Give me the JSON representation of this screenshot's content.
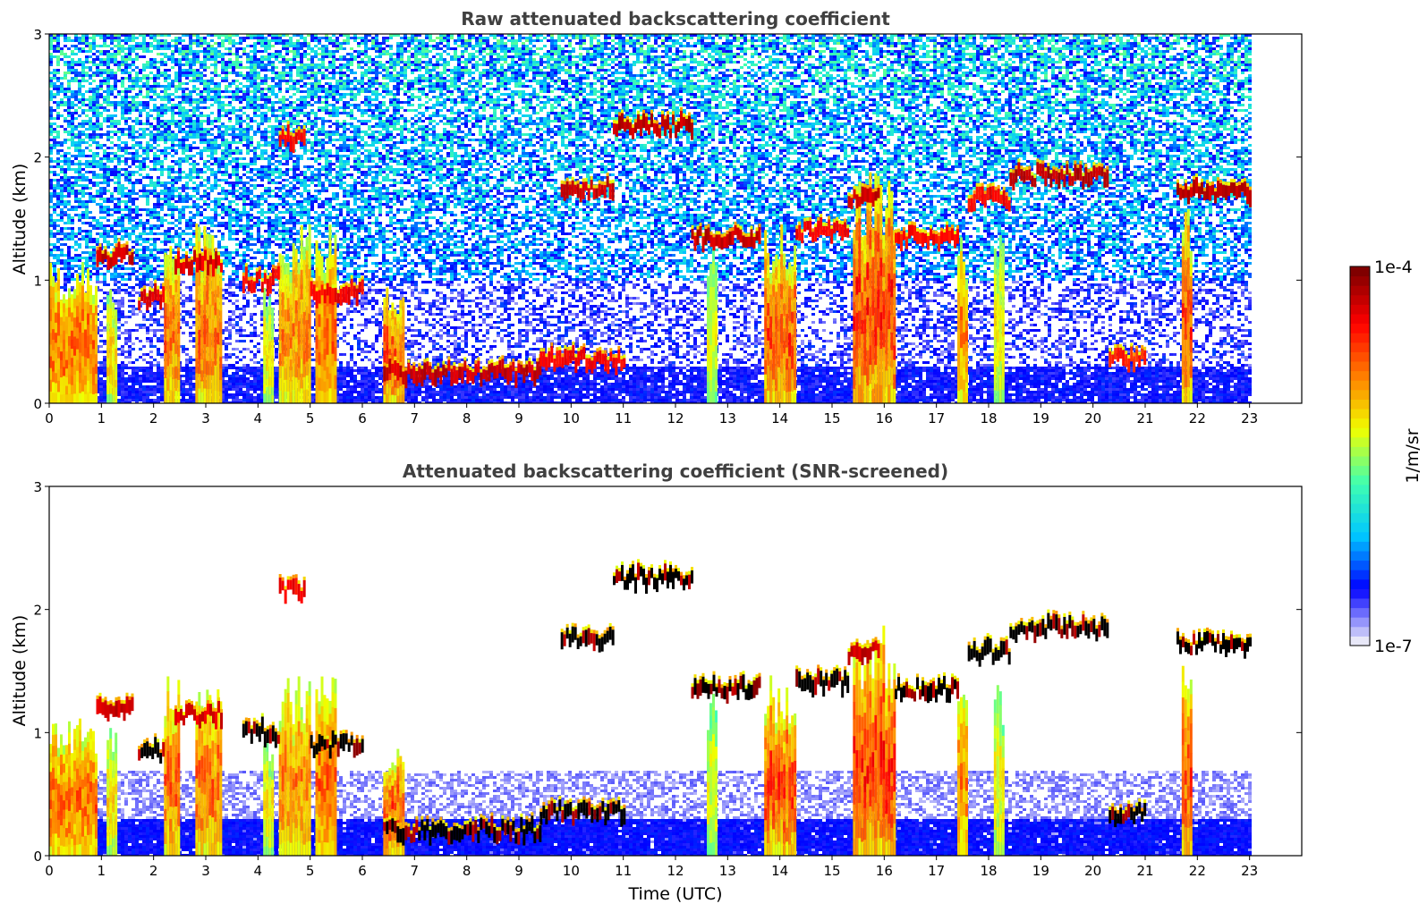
{
  "chart_data": [
    {
      "type": "heatmap",
      "title": "Raw attenuated backscattering coefficient",
      "xlabel": "",
      "ylabel": "Altitude (km)",
      "xlim": [
        0,
        24
      ],
      "ylim": [
        0,
        3
      ],
      "xticks": [
        "0",
        "1",
        "2",
        "3",
        "4",
        "5",
        "6",
        "7",
        "8",
        "9",
        "10",
        "11",
        "12",
        "13",
        "14",
        "15",
        "16",
        "17",
        "18",
        "19",
        "20",
        "21",
        "22",
        "23"
      ],
      "yticks": [
        "0",
        "1",
        "2",
        "3"
      ],
      "data_end_x": 23,
      "layers": [
        {
          "x0": 0.9,
          "x1": 1.6,
          "y": 1.2,
          "level": 0.95
        },
        {
          "x0": 1.7,
          "x1": 2.2,
          "y": 0.85,
          "level": 0.92
        },
        {
          "x0": 2.4,
          "x1": 3.3,
          "y": 1.15,
          "level": 0.93
        },
        {
          "x0": 3.7,
          "x1": 4.4,
          "y": 1.0,
          "level": 0.9
        },
        {
          "x0": 4.4,
          "x1": 4.9,
          "y": 2.15,
          "level": 0.9
        },
        {
          "x0": 5.0,
          "x1": 6.0,
          "y": 0.9,
          "level": 0.9
        },
        {
          "x0": 6.4,
          "x1": 9.4,
          "y": 0.25,
          "level": 0.95
        },
        {
          "x0": 9.4,
          "x1": 11.0,
          "y": 0.35,
          "level": 0.9
        },
        {
          "x0": 9.8,
          "x1": 10.8,
          "y": 1.75,
          "level": 0.95
        },
        {
          "x0": 10.8,
          "x1": 12.3,
          "y": 2.25,
          "level": 0.97
        },
        {
          "x0": 12.3,
          "x1": 13.6,
          "y": 1.35,
          "level": 0.96
        },
        {
          "x0": 14.3,
          "x1": 15.3,
          "y": 1.4,
          "level": 0.9
        },
        {
          "x0": 15.3,
          "x1": 15.9,
          "y": 1.65,
          "level": 0.95
        },
        {
          "x0": 16.2,
          "x1": 17.4,
          "y": 1.35,
          "level": 0.88
        },
        {
          "x0": 17.6,
          "x1": 18.4,
          "y": 1.65,
          "level": 0.9
        },
        {
          "x0": 18.4,
          "x1": 20.3,
          "y": 1.85,
          "level": 0.97
        },
        {
          "x0": 20.3,
          "x1": 21.0,
          "y": 0.35,
          "level": 0.85
        },
        {
          "x0": 21.6,
          "x1": 23.0,
          "y": 1.72,
          "level": 0.97
        }
      ],
      "columns": [
        {
          "x0": 0.0,
          "x1": 0.9,
          "top": 1.1,
          "level": 0.75
        },
        {
          "x0": 1.1,
          "x1": 1.3,
          "top": 1.0,
          "level": 0.55
        },
        {
          "x0": 2.2,
          "x1": 2.5,
          "top": 1.4,
          "level": 0.75
        },
        {
          "x0": 2.8,
          "x1": 3.3,
          "top": 1.4,
          "level": 0.75
        },
        {
          "x0": 4.1,
          "x1": 4.3,
          "top": 0.9,
          "level": 0.5
        },
        {
          "x0": 4.4,
          "x1": 5.0,
          "top": 1.4,
          "level": 0.7
        },
        {
          "x0": 5.1,
          "x1": 5.5,
          "top": 1.4,
          "level": 0.75
        },
        {
          "x0": 6.4,
          "x1": 6.8,
          "top": 0.9,
          "level": 0.8
        },
        {
          "x0": 12.6,
          "x1": 12.8,
          "top": 1.3,
          "level": 0.45
        },
        {
          "x0": 13.7,
          "x1": 14.3,
          "top": 1.4,
          "level": 0.8
        },
        {
          "x0": 15.4,
          "x1": 16.2,
          "top": 1.8,
          "level": 0.85
        },
        {
          "x0": 17.4,
          "x1": 17.6,
          "top": 1.3,
          "level": 0.7
        },
        {
          "x0": 18.1,
          "x1": 18.3,
          "top": 1.4,
          "level": 0.5
        },
        {
          "x0": 21.7,
          "x1": 21.9,
          "top": 1.6,
          "level": 0.8
        }
      ]
    },
    {
      "type": "heatmap",
      "title": "Attenuated backscattering coefficient (SNR-screened)",
      "xlabel": "Time (UTC)",
      "ylabel": "Altitude (km)",
      "xlim": [
        0,
        24
      ],
      "ylim": [
        0,
        3
      ],
      "xticks": [
        "0",
        "1",
        "2",
        "3",
        "4",
        "5",
        "6",
        "7",
        "8",
        "9",
        "10",
        "11",
        "12",
        "13",
        "14",
        "15",
        "16",
        "17",
        "18",
        "19",
        "20",
        "21",
        "22",
        "23"
      ],
      "yticks": [
        "0",
        "1",
        "2",
        "3"
      ],
      "data_end_x": 23,
      "screened": true,
      "layers": [
        {
          "x0": 0.9,
          "x1": 1.6,
          "y": 1.2,
          "level": 0.95
        },
        {
          "x0": 1.7,
          "x1": 2.2,
          "y": 0.85,
          "level": 1.0
        },
        {
          "x0": 2.4,
          "x1": 3.3,
          "y": 1.15,
          "level": 0.93
        },
        {
          "x0": 3.7,
          "x1": 4.4,
          "y": 1.0,
          "level": 1.0
        },
        {
          "x0": 4.4,
          "x1": 4.9,
          "y": 2.15,
          "level": 0.9
        },
        {
          "x0": 5.0,
          "x1": 6.0,
          "y": 0.9,
          "level": 1.0
        },
        {
          "x0": 6.4,
          "x1": 9.4,
          "y": 0.2,
          "level": 1.0
        },
        {
          "x0": 9.4,
          "x1": 11.0,
          "y": 0.35,
          "level": 1.0
        },
        {
          "x0": 9.8,
          "x1": 10.8,
          "y": 1.75,
          "level": 1.0
        },
        {
          "x0": 10.8,
          "x1": 12.3,
          "y": 2.25,
          "level": 1.0
        },
        {
          "x0": 12.3,
          "x1": 13.6,
          "y": 1.35,
          "level": 1.0
        },
        {
          "x0": 14.3,
          "x1": 15.3,
          "y": 1.4,
          "level": 1.0
        },
        {
          "x0": 15.3,
          "x1": 15.9,
          "y": 1.65,
          "level": 0.95
        },
        {
          "x0": 16.2,
          "x1": 17.4,
          "y": 1.35,
          "level": 1.0
        },
        {
          "x0": 17.6,
          "x1": 18.4,
          "y": 1.65,
          "level": 1.0
        },
        {
          "x0": 18.4,
          "x1": 20.3,
          "y": 1.85,
          "level": 1.0
        },
        {
          "x0": 20.3,
          "x1": 21.0,
          "y": 0.35,
          "level": 1.0
        },
        {
          "x0": 21.6,
          "x1": 23.0,
          "y": 1.72,
          "level": 1.0
        }
      ],
      "columns": [
        {
          "x0": 0.0,
          "x1": 0.9,
          "top": 1.1,
          "level": 0.75
        },
        {
          "x0": 1.1,
          "x1": 1.3,
          "top": 1.0,
          "level": 0.55
        },
        {
          "x0": 2.2,
          "x1": 2.5,
          "top": 1.4,
          "level": 0.75
        },
        {
          "x0": 2.8,
          "x1": 3.3,
          "top": 1.4,
          "level": 0.75
        },
        {
          "x0": 4.1,
          "x1": 4.3,
          "top": 0.9,
          "level": 0.5
        },
        {
          "x0": 4.4,
          "x1": 5.0,
          "top": 1.4,
          "level": 0.7
        },
        {
          "x0": 5.1,
          "x1": 5.5,
          "top": 1.4,
          "level": 0.75
        },
        {
          "x0": 6.4,
          "x1": 6.8,
          "top": 0.9,
          "level": 0.8
        },
        {
          "x0": 12.6,
          "x1": 12.8,
          "top": 1.3,
          "level": 0.45
        },
        {
          "x0": 13.7,
          "x1": 14.3,
          "top": 1.4,
          "level": 0.8
        },
        {
          "x0": 15.4,
          "x1": 16.2,
          "top": 1.8,
          "level": 0.85
        },
        {
          "x0": 17.4,
          "x1": 17.6,
          "top": 1.3,
          "level": 0.7
        },
        {
          "x0": 18.1,
          "x1": 18.3,
          "top": 1.4,
          "level": 0.5
        },
        {
          "x0": 21.7,
          "x1": 21.9,
          "top": 1.6,
          "level": 0.8
        }
      ]
    }
  ],
  "colorbar": {
    "max_label": "1e-4",
    "min_label": "1e-7",
    "label": "1/m/sr",
    "scale": "log",
    "colormap": [
      "#e8e8f8",
      "#0000ff",
      "#00c8ff",
      "#40ffb0",
      "#f0ff00",
      "#ff8000",
      "#ff0000",
      "#800000"
    ]
  }
}
